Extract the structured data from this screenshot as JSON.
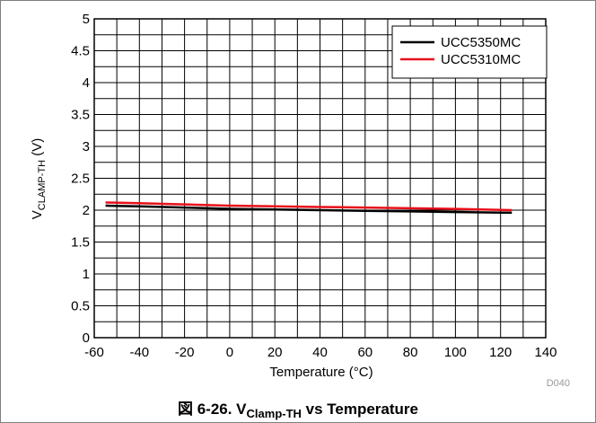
{
  "chart_data": {
    "type": "line",
    "title": "",
    "xlabel": "Temperature (°C)",
    "ylabel_main": "V",
    "ylabel_sub": "CLAMP-TH",
    "ylabel_unit": " (V)",
    "xlim": [
      -60,
      140
    ],
    "ylim": [
      0,
      5
    ],
    "x_ticks": [
      -60,
      -40,
      -20,
      0,
      20,
      40,
      60,
      80,
      100,
      120,
      140
    ],
    "y_ticks": [
      0,
      0.5,
      1,
      1.5,
      2,
      2.5,
      3,
      3.5,
      4,
      4.5,
      5
    ],
    "grid": true,
    "legend_position": "top-right",
    "series": [
      {
        "name": "UCC5350MC",
        "color": "#000000",
        "x": [
          -55,
          -40,
          -20,
          0,
          20,
          40,
          60,
          80,
          100,
          125
        ],
        "y": [
          2.07,
          2.06,
          2.04,
          2.02,
          2.01,
          2.0,
          1.99,
          1.98,
          1.97,
          1.96
        ]
      },
      {
        "name": "UCC5310MC",
        "color": "#e8101a",
        "x": [
          -55,
          -40,
          -20,
          0,
          20,
          40,
          60,
          80,
          100,
          125
        ],
        "y": [
          2.12,
          2.11,
          2.09,
          2.07,
          2.06,
          2.05,
          2.04,
          2.03,
          2.02,
          2.0
        ]
      }
    ]
  },
  "figure_code": "D040",
  "caption": {
    "prefix": "図 6-26. V",
    "sub": "Clamp-TH",
    "suffix": " vs Temperature"
  }
}
